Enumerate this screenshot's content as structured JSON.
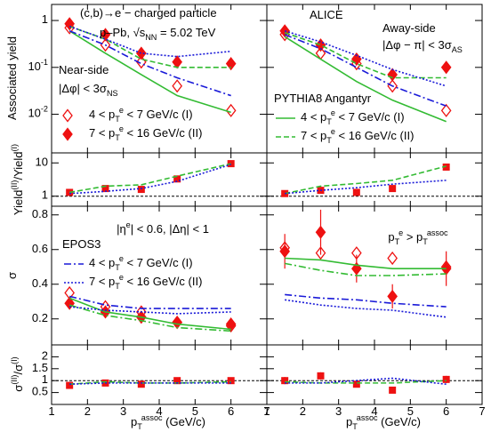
{
  "chart_data": [
    {
      "type": "line",
      "yscale": "log",
      "xlim": [
        1,
        7
      ],
      "xticks": [
        1,
        2,
        3,
        4,
        5,
        6,
        7
      ],
      "ylim": [
        0.0015,
        2.2
      ],
      "yticks": [
        {
          "value": 0.01,
          "label": "10^{-2}"
        },
        {
          "value": 0.1,
          "label": "10^{-1}"
        },
        1
      ],
      "ylabel": "Associated yield",
      "annotations": [
        "(c,b)→e − charged particle",
        "p–Pb, √s_{NN} = 5.02 TeV",
        "Near-side",
        "|Δφ| < 3σ_{NS}"
      ],
      "x": [
        1.5,
        2.5,
        3.5,
        4.5,
        6
      ],
      "series": [
        {
          "name": "4 < p_{T}^{e} < 7 GeV/c (I)",
          "color": "#ee1111",
          "marker": "diamond-open",
          "values": [
            0.7,
            0.3,
            0.13,
            0.04,
            0.012
          ]
        },
        {
          "name": "7 < p_{T}^{e} < 16 GeV/c (II)",
          "color": "#ee1111",
          "marker": "diamond",
          "values": [
            0.85,
            0.5,
            0.2,
            0.13,
            0.12
          ]
        },
        {
          "color": "#33bb33",
          "line": "solid",
          "values": [
            0.6,
            0.2,
            0.07,
            0.025,
            0.011
          ]
        },
        {
          "color": "#33bb33",
          "line": "dash",
          "values": [
            0.75,
            0.4,
            0.15,
            0.1,
            0.1
          ]
        },
        {
          "color": "#1a1ad8",
          "line": "dashdot",
          "values": [
            0.6,
            0.3,
            0.12,
            0.06,
            0.025
          ]
        },
        {
          "color": "#1a1ad8",
          "line": "dot",
          "values": [
            0.75,
            0.4,
            0.2,
            0.17,
            0.22
          ]
        }
      ]
    },
    {
      "type": "line",
      "yscale": "log",
      "xlim": [
        1,
        7
      ],
      "xticks": [
        1,
        2,
        3,
        4,
        5,
        6,
        7
      ],
      "ylim": [
        0.0015,
        2.2
      ],
      "yticks": [
        0.01,
        0.1,
        1
      ],
      "annotations": [
        "ALICE",
        "Away-side",
        "|Δφ − π| < 3σ_{AS}"
      ],
      "legend_title": "PYTHIA8 Angantyr",
      "x": [
        1.5,
        2.5,
        3.5,
        4.5,
        6
      ],
      "series": [
        {
          "color": "#ee1111",
          "marker": "diamond-open",
          "values": [
            0.5,
            0.2,
            0.12,
            0.04,
            0.012
          ]
        },
        {
          "color": "#ee1111",
          "marker": "diamond",
          "values": [
            0.6,
            0.3,
            0.15,
            0.07,
            0.1
          ]
        },
        {
          "name": "4 < p_{T}^{e} < 7 GeV/c (I)",
          "color": "#33bb33",
          "line": "solid",
          "values": [
            0.45,
            0.15,
            0.05,
            0.02,
            0.007
          ]
        },
        {
          "name": "7 < p_{T}^{e} < 16 GeV/c (II)",
          "color": "#33bb33",
          "line": "dash",
          "values": [
            0.55,
            0.3,
            0.12,
            0.06,
            0.06
          ]
        },
        {
          "color": "#1a1ad8",
          "line": "dashdot",
          "values": [
            0.5,
            0.25,
            0.1,
            0.04,
            0.015
          ]
        },
        {
          "color": "#1a1ad8",
          "line": "dot",
          "values": [
            0.6,
            0.35,
            0.18,
            0.09,
            0.04
          ]
        }
      ]
    },
    {
      "type": "line",
      "yscale": "log",
      "xlim": [
        1,
        7
      ],
      "xticks": [
        1,
        2,
        3,
        4,
        5,
        6,
        7
      ],
      "ylim": [
        0.5,
        20
      ],
      "yticks": [
        1,
        10
      ],
      "ylabel": "Yield^{(II)}/Yield^{(I)}",
      "hline": 1,
      "x": [
        1.5,
        2.5,
        3.5,
        4.5,
        6
      ],
      "series": [
        {
          "color": "#ee1111",
          "marker": "square",
          "values": [
            1.3,
            1.7,
            1.6,
            3.3,
            9.5
          ]
        },
        {
          "color": "#33bb33",
          "line": "dash",
          "values": [
            1.3,
            2.0,
            2.2,
            4.0,
            9.5
          ]
        },
        {
          "color": "#1a1ad8",
          "line": "dot",
          "values": [
            1.2,
            1.4,
            1.7,
            2.8,
            9
          ]
        }
      ]
    },
    {
      "type": "line",
      "yscale": "log",
      "xlim": [
        1,
        7
      ],
      "xticks": [
        1,
        2,
        3,
        4,
        5,
        6,
        7
      ],
      "ylim": [
        0.5,
        20
      ],
      "yticks": [
        1,
        10
      ],
      "hline": 1,
      "x": [
        1.5,
        2.5,
        3.5,
        4.5,
        6
      ],
      "series": [
        {
          "color": "#ee1111",
          "marker": "square",
          "values": [
            1.2,
            1.5,
            1.3,
            1.7,
            7.5
          ]
        },
        {
          "color": "#33bb33",
          "line": "dash",
          "values": [
            1.2,
            2.0,
            2.4,
            3.0,
            8.0
          ]
        },
        {
          "color": "#1a1ad8",
          "line": "dot",
          "values": [
            1.2,
            1.5,
            1.8,
            2.3,
            3.0
          ]
        }
      ]
    },
    {
      "type": "line",
      "xlim": [
        1,
        7
      ],
      "xticks": [
        1,
        2,
        3,
        4,
        5,
        6,
        7
      ],
      "ylim": [
        0.05,
        0.85
      ],
      "yticks": [
        0.2,
        0.4,
        0.6,
        0.8
      ],
      "ylabel": "σ",
      "annotations": [
        "|η^{e}| < 0.6, |Δη| < 1"
      ],
      "legend_title": "EPOS3",
      "x": [
        1.5,
        2.5,
        3.5,
        4.5,
        6
      ],
      "series": [
        {
          "color": "#ee1111",
          "marker": "diamond-open",
          "values": [
            0.35,
            0.27,
            0.24,
            0.18,
            0.16
          ]
        },
        {
          "color": "#ee1111",
          "marker": "diamond",
          "values": [
            0.29,
            0.24,
            0.21,
            0.18,
            0.17
          ]
        },
        {
          "color": "#33bb33",
          "line": "solid",
          "values": [
            0.32,
            0.24,
            0.21,
            0.17,
            0.14
          ]
        },
        {
          "color": "#33bb33",
          "line": "dashdot",
          "values": [
            0.28,
            0.22,
            0.19,
            0.15,
            0.13
          ]
        },
        {
          "name": "4 < p_{T}^{e} < 7 GeV/c (I)",
          "color": "#1a1ad8",
          "line": "dashdot",
          "values": [
            0.33,
            0.28,
            0.26,
            0.26,
            0.26
          ]
        },
        {
          "name": "7 < p_{T}^{e} < 16 GeV/c (II)",
          "color": "#1a1ad8",
          "line": "dot",
          "values": [
            0.27,
            0.25,
            0.24,
            0.23,
            0.24
          ]
        }
      ]
    },
    {
      "type": "line",
      "xlim": [
        1,
        7
      ],
      "xticks": [
        1,
        2,
        3,
        4,
        5,
        6,
        7
      ],
      "ylim": [
        0.05,
        0.85
      ],
      "yticks": [
        0.2,
        0.4,
        0.6,
        0.8
      ],
      "annotations": [
        "p_{T}^{e} > p_{T}^{assoc}"
      ],
      "x": [
        1.5,
        2.5,
        3.5,
        4.5,
        6
      ],
      "series": [
        {
          "color": "#ee1111",
          "marker": "diamond-open",
          "values": [
            0.61,
            0.58,
            0.58,
            0.55,
            0.5
          ]
        },
        {
          "color": "#ee1111",
          "marker": "diamond",
          "values": [
            0.59,
            0.7,
            0.49,
            0.33,
            0.49
          ],
          "errors": [
            0.1,
            0.13,
            0.08,
            0.07,
            0.1
          ]
        },
        {
          "color": "#33bb33",
          "line": "solid",
          "values": [
            0.55,
            0.54,
            0.51,
            0.49,
            0.49
          ]
        },
        {
          "color": "#33bb33",
          "line": "dashdot",
          "values": [
            0.52,
            0.48,
            0.45,
            0.45,
            0.46
          ]
        },
        {
          "color": "#1a1ad8",
          "line": "dashdot",
          "values": [
            0.34,
            0.32,
            0.31,
            0.29,
            0.27
          ]
        },
        {
          "color": "#1a1ad8",
          "line": "dot",
          "values": [
            0.31,
            0.28,
            0.26,
            0.25,
            0.21
          ]
        }
      ]
    },
    {
      "type": "line",
      "xlim": [
        1,
        7
      ],
      "xticks": [
        1,
        2,
        3,
        4,
        5,
        6,
        7
      ],
      "ylim": [
        0,
        2.5
      ],
      "yticks": [
        0.5,
        1,
        1.5,
        2
      ],
      "ylabel": "σ^{(II)}/σ^{(I)}",
      "xlabel": "p_{T}^{assoc} (GeV/c)",
      "hline": 1,
      "x": [
        1.5,
        2.5,
        3.5,
        4.5,
        6
      ],
      "series": [
        {
          "color": "#ee1111",
          "marker": "square",
          "values": [
            0.8,
            0.9,
            0.85,
            1.0,
            1.0
          ]
        },
        {
          "color": "#33bb33",
          "line": "dash",
          "values": [
            0.85,
            0.95,
            0.9,
            0.9,
            0.95
          ]
        },
        {
          "color": "#1a1ad8",
          "line": "dot",
          "values": [
            0.85,
            0.9,
            0.9,
            0.9,
            0.9
          ]
        }
      ]
    },
    {
      "type": "line",
      "xlim": [
        1,
        7
      ],
      "xticks": [
        1,
        2,
        3,
        4,
        5,
        6,
        7
      ],
      "ylim": [
        0,
        2.5
      ],
      "yticks": [
        0.5,
        1,
        1.5,
        2
      ],
      "xlabel": "p_{T}^{assoc} (GeV/c)",
      "hline": 1,
      "x": [
        1.5,
        2.5,
        3.5,
        4.5,
        6
      ],
      "series": [
        {
          "color": "#ee1111",
          "marker": "square",
          "values": [
            1.0,
            1.2,
            0.85,
            0.6,
            1.05
          ],
          "errors": [
            0.15,
            0.15,
            0.12,
            0.08,
            0.15
          ]
        },
        {
          "color": "#33bb33",
          "line": "dash",
          "values": [
            0.95,
            0.9,
            0.9,
            0.9,
            1.0
          ]
        },
        {
          "color": "#1a1ad8",
          "line": "dot",
          "values": [
            0.9,
            0.9,
            1.0,
            1.1,
            0.85
          ]
        }
      ]
    }
  ]
}
